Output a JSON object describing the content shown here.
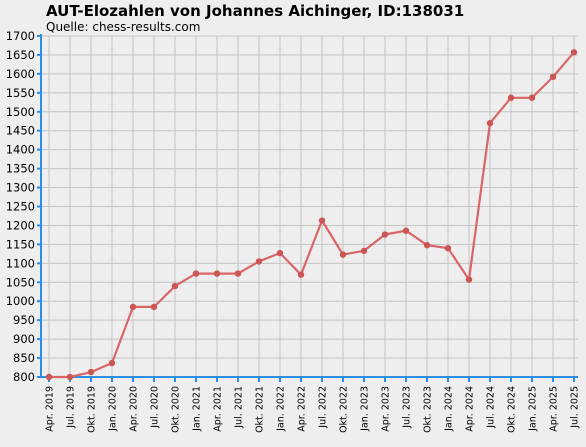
{
  "title": "AUT-Elozahlen von Johannes Aichinger, ID:138031",
  "subtitle": "Quelle: chess-results.com",
  "chart_data": {
    "type": "line",
    "title": "AUT-Elozahlen von Johannes Aichinger, ID:138031",
    "subtitle": "Quelle: chess-results.com",
    "xlabel": "",
    "ylabel": "",
    "ylim": [
      800,
      1700
    ],
    "ytick_step": 50,
    "grid": true,
    "colors": {
      "line": "#d96666",
      "point": "#cc5555",
      "axis": "#2a8ee8",
      "grid": "#c4c4c4",
      "background": "#eeeeee"
    },
    "categories": [
      "Apr. 2019",
      "Jul. 2019",
      "Okt. 2019",
      "Jan. 2020",
      "Apr. 2020",
      "Jul. 2020",
      "Okt. 2020",
      "Jan. 2021",
      "Apr. 2021",
      "Jul. 2021",
      "Okt. 2021",
      "Jan. 2022",
      "Apr. 2022",
      "Jul. 2022",
      "Okt. 2022",
      "Jan. 2023",
      "Apr. 2023",
      "Jul. 2023",
      "Okt. 2023",
      "Jan. 2024",
      "Apr. 2024",
      "Jul. 2024",
      "Okt. 2024",
      "Jan. 2025",
      "Apr. 2025",
      "Jul. 2025"
    ],
    "values": [
      800,
      800,
      813,
      837,
      985,
      985,
      1040,
      1073,
      1073,
      1073,
      1105,
      1127,
      1070,
      1213,
      1123,
      1133,
      1176,
      1186,
      1148,
      1140,
      1057,
      1470,
      1537,
      1537,
      1592,
      1657
    ]
  }
}
